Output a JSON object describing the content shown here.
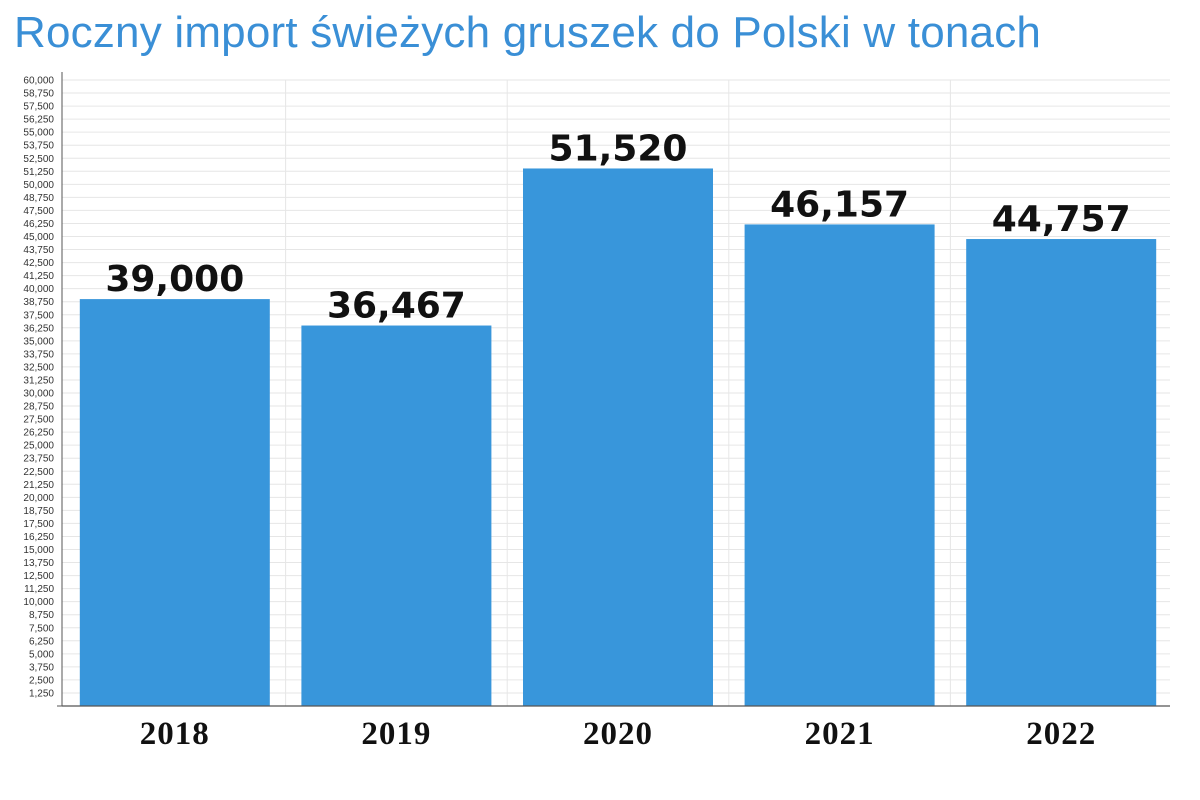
{
  "chart_data": {
    "type": "bar",
    "title": "Roczny import świeżych gruszek do Polski w tonach",
    "categories": [
      "2018",
      "2019",
      "2020",
      "2021",
      "2022"
    ],
    "values": [
      39000,
      36467,
      51520,
      46157,
      44757
    ],
    "value_labels": [
      "39,000",
      "36,467",
      "51,520",
      "46,157",
      "44,757"
    ],
    "xlabel": "",
    "ylabel": "",
    "ylim": [
      0,
      60000
    ],
    "ytick_step": 1250,
    "grid": true,
    "legend": "none",
    "bar_color": "#3896db",
    "grid_color": "#e6e6e6"
  }
}
